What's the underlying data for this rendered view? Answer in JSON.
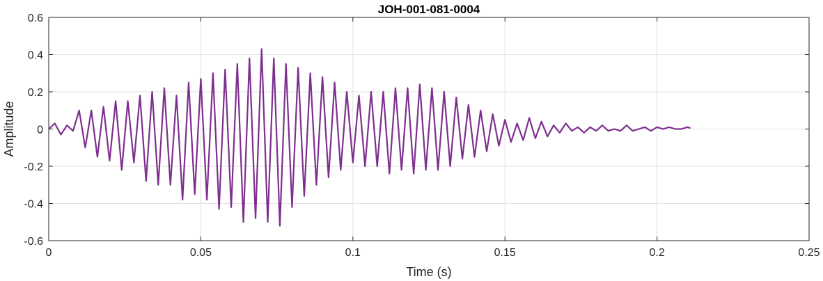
{
  "chart_data": {
    "type": "line",
    "title": "JOH-001-081-0004",
    "xlabel": "Time (s)",
    "ylabel": "Amplitude",
    "xlim": [
      0,
      0.25
    ],
    "ylim": [
      -0.6,
      0.6
    ],
    "xticks": [
      0,
      0.05,
      0.1,
      0.15,
      0.2,
      0.25
    ],
    "xtick_labels": [
      "0",
      "0.05",
      "0.1",
      "0.15",
      "0.2",
      "0.25"
    ],
    "yticks": [
      -0.6,
      -0.4,
      -0.2,
      0,
      0.2,
      0.4,
      0.6
    ],
    "ytick_labels": [
      "-0.6",
      "-0.4",
      "-0.2",
      "0",
      "0.2",
      "0.4",
      "0.6"
    ],
    "grid": true,
    "line_color": "#7E2F8E",
    "series": [
      {
        "x": [
          0,
          0.002,
          0.004,
          0.006,
          0.008,
          0.01,
          0.012,
          0.014,
          0.016,
          0.018,
          0.02,
          0.022,
          0.024,
          0.026,
          0.028,
          0.03,
          0.032,
          0.034,
          0.036,
          0.038,
          0.04,
          0.042,
          0.044,
          0.046,
          0.048,
          0.05,
          0.052,
          0.054,
          0.056,
          0.058,
          0.06,
          0.062,
          0.064,
          0.066,
          0.068,
          0.07,
          0.072,
          0.074,
          0.076,
          0.078,
          0.08,
          0.082,
          0.084,
          0.086,
          0.088,
          0.09,
          0.092,
          0.094,
          0.096,
          0.098,
          0.1,
          0.102,
          0.104,
          0.106,
          0.108,
          0.11,
          0.112,
          0.114,
          0.116,
          0.118,
          0.12,
          0.122,
          0.124,
          0.126,
          0.128,
          0.13,
          0.132,
          0.134,
          0.136,
          0.138,
          0.14,
          0.142,
          0.144,
          0.146,
          0.148,
          0.15,
          0.152,
          0.154,
          0.156,
          0.158,
          0.16,
          0.162,
          0.164,
          0.166,
          0.168,
          0.17,
          0.172,
          0.174,
          0.176,
          0.178,
          0.18,
          0.182,
          0.184,
          0.186,
          0.188,
          0.19,
          0.192,
          0.194,
          0.196,
          0.198,
          0.2,
          0.202,
          0.204,
          0.206,
          0.208,
          0.21,
          0.211
        ],
        "y": [
          0.0,
          0.03,
          -0.03,
          0.02,
          -0.01,
          0.1,
          -0.1,
          0.1,
          -0.15,
          0.12,
          -0.17,
          0.15,
          -0.22,
          0.15,
          -0.18,
          0.18,
          -0.28,
          0.2,
          -0.3,
          0.22,
          -0.3,
          0.18,
          -0.38,
          0.25,
          -0.35,
          0.27,
          -0.38,
          0.3,
          -0.43,
          0.32,
          -0.42,
          0.35,
          -0.5,
          0.38,
          -0.48,
          0.43,
          -0.5,
          0.38,
          -0.52,
          0.35,
          -0.42,
          0.33,
          -0.36,
          0.3,
          -0.3,
          0.28,
          -0.26,
          0.25,
          -0.22,
          0.2,
          -0.18,
          0.18,
          -0.2,
          0.2,
          -0.2,
          0.2,
          -0.24,
          0.22,
          -0.22,
          0.22,
          -0.24,
          0.24,
          -0.22,
          0.22,
          -0.22,
          0.2,
          -0.2,
          0.17,
          -0.16,
          0.13,
          -0.15,
          0.1,
          -0.12,
          0.08,
          -0.09,
          0.05,
          -0.07,
          0.03,
          -0.06,
          0.06,
          -0.05,
          0.04,
          -0.04,
          0.02,
          -0.02,
          0.03,
          -0.01,
          0.01,
          -0.02,
          0.01,
          -0.01,
          0.02,
          -0.01,
          0.0,
          -0.01,
          0.02,
          -0.01,
          0.0,
          0.01,
          -0.01,
          0.01,
          0.0,
          0.01,
          0.0,
          0.0,
          0.01,
          0.005
        ]
      }
    ]
  }
}
